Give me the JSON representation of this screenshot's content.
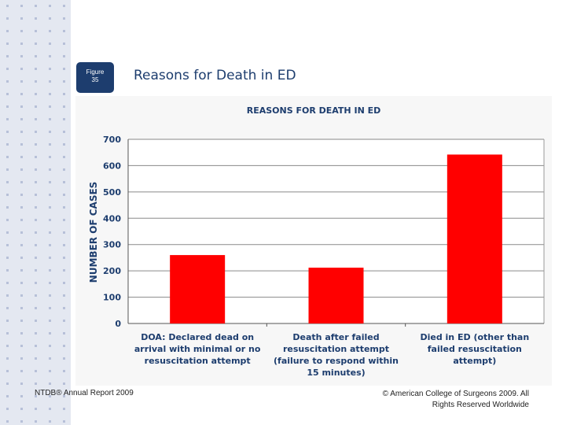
{
  "slide": {
    "figure_label_line1": "Figure",
    "figure_label_line2": "35",
    "title": "Reasons for Death in ED",
    "footer_left": "NTDB® Annual Report 2009",
    "footer_right": "© American College of Surgeons 2009. All Rights Reserved Worldwide",
    "accent_color": "#1d3d6e"
  },
  "chart_data": {
    "type": "bar",
    "title": "REASONS FOR DEATH IN ED",
    "xlabel": "",
    "ylabel": "NUMBER OF CASES",
    "ylim": [
      0,
      700
    ],
    "yticks": [
      0,
      100,
      200,
      300,
      400,
      500,
      600,
      700
    ],
    "grid": true,
    "bar_color": "#ff0000",
    "categories": [
      "DOA: Declared dead on arrival with minimal or no resuscitation attempt",
      "Death after failed resuscitation attempt (failure to respond within 15 minutes)",
      "Died in ED (other than failed resuscitation attempt)"
    ],
    "values": [
      260,
      212,
      642
    ]
  }
}
